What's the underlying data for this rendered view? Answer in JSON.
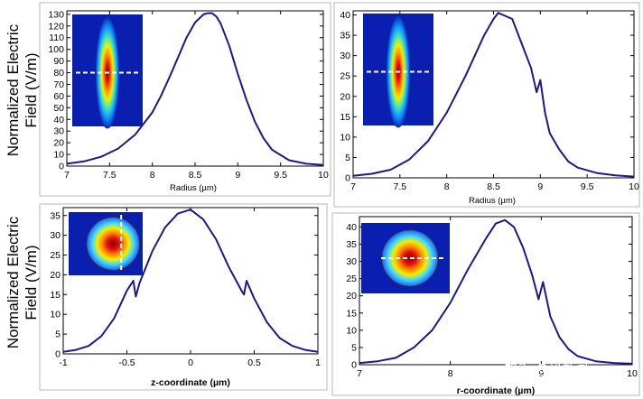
{
  "watermark": "知乎 @模数哥",
  "colors": {
    "line": "#1a1a8c",
    "frame": "#000000"
  },
  "y_title_lines": [
    "Normalized Electric",
    "Field (V/m)"
  ],
  "chart_data": [
    {
      "type": "line",
      "xlabel": "Radius (µm)",
      "xlim": [
        7,
        10
      ],
      "ylim": [
        0,
        133
      ],
      "xticks": [
        7,
        7.5,
        8,
        8.5,
        9,
        9.5,
        10
      ],
      "xtick_labels": [
        "7",
        "7.5",
        "8",
        "8.5",
        "9",
        "9.5",
        "10"
      ],
      "yticks": [
        0,
        10,
        20,
        30,
        40,
        50,
        60,
        70,
        80,
        90,
        100,
        110,
        120,
        130
      ],
      "ytick_labels": [
        "0",
        "10",
        "20",
        "30",
        "40",
        "50",
        "60",
        "70",
        "80",
        "90",
        "100",
        "110",
        "120",
        "130"
      ],
      "inset": "elongated-beam",
      "series": [
        {
          "name": "E-field",
          "x": [
            7,
            7.2,
            7.4,
            7.6,
            7.8,
            8.0,
            8.1,
            8.2,
            8.3,
            8.4,
            8.5,
            8.6,
            8.65,
            8.7,
            8.75,
            8.8,
            8.9,
            9.0,
            9.1,
            9.2,
            9.3,
            9.4,
            9.6,
            9.8,
            10
          ],
          "y": [
            2,
            4,
            8,
            15,
            27,
            46,
            60,
            76,
            93,
            110,
            123,
            130,
            131,
            131,
            128,
            122,
            103,
            79,
            57,
            38,
            24,
            14,
            5,
            2,
            1
          ]
        }
      ]
    },
    {
      "type": "line",
      "xlabel": "Radius (µm)",
      "xlim": [
        7,
        10
      ],
      "ylim": [
        0,
        41
      ],
      "xticks": [
        7,
        7.5,
        8,
        8.5,
        9,
        9.5,
        10
      ],
      "xtick_labels": [
        "7",
        "7.5",
        "8",
        "8.5",
        "9",
        "9.5",
        "10"
      ],
      "yticks": [
        0,
        5,
        10,
        15,
        20,
        25,
        30,
        35,
        40
      ],
      "ytick_labels": [
        "0",
        "5",
        "10",
        "15",
        "20",
        "25",
        "30",
        "35",
        "40"
      ],
      "inset": "elongated-beam",
      "series": [
        {
          "name": "E-field",
          "x": [
            7,
            7.2,
            7.4,
            7.6,
            7.8,
            8.0,
            8.2,
            8.4,
            8.5,
            8.55,
            8.6,
            8.7,
            8.8,
            8.9,
            8.96,
            9.0,
            9.05,
            9.1,
            9.2,
            9.3,
            9.4,
            9.6,
            9.8,
            10
          ],
          "y": [
            0.5,
            1,
            2,
            4.5,
            9,
            16,
            25,
            35,
            39,
            40.5,
            40,
            39,
            33,
            27,
            21,
            24,
            16,
            11,
            7,
            4,
            2.5,
            1.2,
            0.6,
            0.3
          ]
        }
      ]
    },
    {
      "type": "line",
      "xlabel": "z-coordinate (µm)",
      "xlim": [
        -1,
        1
      ],
      "ylim": [
        0,
        37
      ],
      "xticks": [
        -1,
        -0.5,
        0,
        0.5,
        1
      ],
      "xtick_labels": [
        "-1",
        "-0.5",
        "0",
        "0.5",
        "1"
      ],
      "yticks": [
        0,
        5,
        10,
        15,
        20,
        25,
        30,
        35
      ],
      "ytick_labels": [
        "0",
        "5",
        "10",
        "15",
        "20",
        "25",
        "30",
        "35"
      ],
      "inset": "circular-vertical",
      "series": [
        {
          "name": "E-field",
          "x": [
            -1,
            -0.9,
            -0.8,
            -0.7,
            -0.6,
            -0.5,
            -0.45,
            -0.43,
            -0.4,
            -0.3,
            -0.2,
            -0.1,
            0,
            0.1,
            0.2,
            0.3,
            0.4,
            0.42,
            0.44,
            0.5,
            0.6,
            0.7,
            0.8,
            0.9,
            1
          ],
          "y": [
            0.5,
            1,
            2,
            4.5,
            9,
            16,
            18.5,
            14.5,
            18,
            26,
            32,
            35.5,
            36.5,
            34,
            29,
            22,
            16,
            15,
            18.5,
            14,
            8,
            4,
            2,
            1,
            0.5
          ]
        }
      ]
    },
    {
      "type": "line",
      "xlabel": "r-coordinate (µm)",
      "xlim": [
        7,
        10
      ],
      "ylim": [
        0,
        43
      ],
      "xticks": [
        7,
        8,
        9,
        10
      ],
      "xtick_labels": [
        "7",
        "8",
        "9",
        "10"
      ],
      "yticks": [
        0,
        5,
        10,
        15,
        20,
        25,
        30,
        35,
        40
      ],
      "ytick_labels": [
        "0",
        "5",
        "10",
        "15",
        "20",
        "25",
        "30",
        "35",
        "40"
      ],
      "inset": "circular-horizontal",
      "series": [
        {
          "name": "E-field",
          "x": [
            7,
            7.2,
            7.4,
            7.6,
            7.8,
            8.0,
            8.2,
            8.4,
            8.5,
            8.6,
            8.7,
            8.8,
            8.9,
            8.97,
            9.02,
            9.1,
            9.2,
            9.3,
            9.4,
            9.6,
            9.8,
            10
          ],
          "y": [
            0.5,
            1,
            2,
            5,
            10,
            18,
            28,
            37,
            41,
            42,
            40,
            34,
            26,
            19,
            24,
            14,
            8,
            4.5,
            2.5,
            1,
            0.5,
            0.3
          ]
        }
      ]
    }
  ]
}
